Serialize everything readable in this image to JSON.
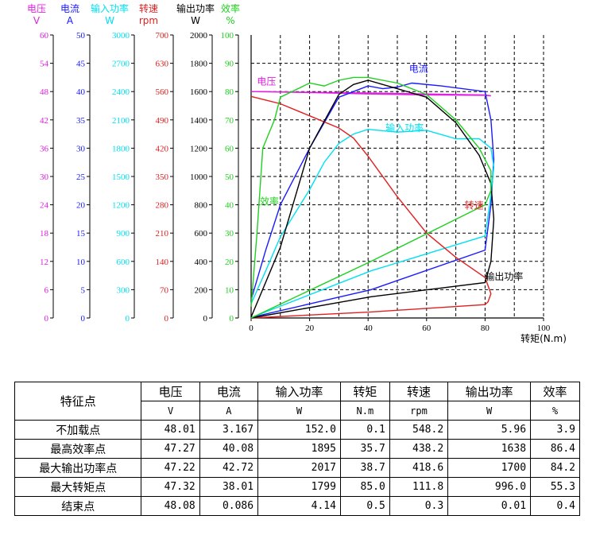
{
  "chart_data": {
    "type": "line",
    "xlabel": "转矩(N.m)",
    "xlim": [
      0,
      100
    ],
    "x_ticks": [
      "0",
      "20",
      "40",
      "60",
      "80",
      "100"
    ],
    "grid": true,
    "axes": [
      {
        "name": "电压",
        "unit": "V",
        "color": "#e020e0",
        "ticks": [
          "0",
          "6",
          "12",
          "18",
          "24",
          "30",
          "36",
          "42",
          "48",
          "54",
          "60"
        ]
      },
      {
        "name": "电流",
        "unit": "A",
        "color": "#1a1aff",
        "ticks": [
          "0",
          "5",
          "10",
          "15",
          "20",
          "25",
          "30",
          "35",
          "40",
          "45",
          "50"
        ]
      },
      {
        "name": "输入功率",
        "unit": "W",
        "color": "#00e0f0",
        "ticks": [
          "0",
          "300",
          "600",
          "900",
          "1200",
          "1500",
          "1800",
          "2100",
          "2400",
          "2700",
          "3000"
        ]
      },
      {
        "name": "转速",
        "unit": "rpm",
        "color": "#e02020",
        "ticks": [
          "0",
          "70",
          "140",
          "210",
          "280",
          "350",
          "420",
          "490",
          "560",
          "630",
          "700"
        ]
      },
      {
        "name": "输出功率",
        "unit": "W",
        "color": "#000000",
        "ticks": [
          "0",
          "200",
          "400",
          "600",
          "800",
          "1000",
          "1200",
          "1400",
          "1600",
          "1800",
          "2000"
        ]
      },
      {
        "name": "效率",
        "unit": "%",
        "color": "#20d020",
        "ticks": [
          "0",
          "10",
          "20",
          "30",
          "40",
          "50",
          "60",
          "70",
          "80",
          "90",
          "100"
        ]
      }
    ],
    "series": [
      {
        "name": "电压",
        "color": "#e020e0",
        "frac": 0.8,
        "points": [
          [
            0,
            48.0
          ],
          [
            20,
            47.8
          ],
          [
            40,
            47.5
          ],
          [
            60,
            47.3
          ],
          [
            80,
            47.2
          ],
          [
            82,
            47.1
          ],
          [
            80,
            47.3
          ],
          [
            40,
            47.7
          ],
          [
            0,
            48.0
          ]
        ]
      },
      {
        "name": "电流",
        "color": "#1a1aff",
        "frac": 0.5,
        "points": [
          [
            0,
            3.2
          ],
          [
            5,
            12
          ],
          [
            10,
            20
          ],
          [
            20,
            30
          ],
          [
            30,
            39
          ],
          [
            35,
            40
          ],
          [
            40,
            41
          ],
          [
            45,
            40.5
          ],
          [
            50,
            40.8
          ],
          [
            55,
            41.5
          ],
          [
            65,
            41
          ],
          [
            80,
            40
          ],
          [
            82,
            35
          ],
          [
            83,
            28
          ],
          [
            82,
            20
          ],
          [
            80,
            12
          ],
          [
            41,
            5
          ],
          [
            0,
            0.1
          ]
        ]
      },
      {
        "name": "输入功率",
        "color": "#00e0f0",
        "frac": 0.38,
        "points": [
          [
            0,
            152
          ],
          [
            5,
            500
          ],
          [
            10,
            860
          ],
          [
            20,
            1360
          ],
          [
            25,
            1650
          ],
          [
            30,
            1850
          ],
          [
            35,
            1950
          ],
          [
            40,
            2000
          ],
          [
            50,
            1970
          ],
          [
            60,
            1990
          ],
          [
            70,
            1900
          ],
          [
            78,
            1900
          ],
          [
            82,
            1800
          ],
          [
            83,
            1600
          ],
          [
            82,
            1300
          ],
          [
            80,
            870
          ],
          [
            41,
            500
          ],
          [
            0,
            4
          ]
        ]
      },
      {
        "name": "转速",
        "color": "#e02020",
        "frac": 0.38,
        "points": [
          [
            0,
            548
          ],
          [
            10,
            530
          ],
          [
            20,
            500
          ],
          [
            30,
            470
          ],
          [
            35,
            445
          ],
          [
            40,
            400
          ],
          [
            50,
            300
          ],
          [
            60,
            210
          ],
          [
            70,
            150
          ],
          [
            80,
            100
          ],
          [
            82,
            60
          ],
          [
            81,
            40
          ],
          [
            80,
            33
          ],
          [
            41,
            15
          ],
          [
            0,
            0
          ]
        ]
      },
      {
        "name": "输出功率",
        "color": "#000000",
        "frac": 0.38,
        "points": [
          [
            0,
            6
          ],
          [
            10,
            500
          ],
          [
            20,
            1200
          ],
          [
            30,
            1580
          ],
          [
            35,
            1650
          ],
          [
            40,
            1680
          ],
          [
            50,
            1620
          ],
          [
            60,
            1560
          ],
          [
            70,
            1380
          ],
          [
            78,
            1150
          ],
          [
            82,
            950
          ],
          [
            83,
            700
          ],
          [
            82,
            400
          ],
          [
            80,
            250
          ],
          [
            41,
            150
          ],
          [
            0,
            0
          ]
        ]
      },
      {
        "name": "效率",
        "color": "#20d020",
        "frac": 0.42,
        "points": [
          [
            0,
            4
          ],
          [
            2,
            30
          ],
          [
            4,
            60
          ],
          [
            8,
            70
          ],
          [
            10,
            78
          ],
          [
            20,
            83
          ],
          [
            25,
            82
          ],
          [
            30,
            84
          ],
          [
            35,
            85
          ],
          [
            40,
            85
          ],
          [
            50,
            83
          ],
          [
            60,
            79
          ],
          [
            70,
            70
          ],
          [
            78,
            60
          ],
          [
            82,
            52
          ],
          [
            82,
            45
          ],
          [
            80,
            40
          ],
          [
            41,
            20
          ],
          [
            0,
            0
          ]
        ]
      }
    ],
    "curve_labels": [
      {
        "text": "电压",
        "color": "#e020e0",
        "x": 2,
        "y_axis": 0,
        "y": 49.5
      },
      {
        "text": "电流",
        "color": "#1a1aff",
        "x": 54,
        "y_axis": 1,
        "y": 43.5
      },
      {
        "text": "输入功率",
        "color": "#00e0f0",
        "x": 46,
        "y_axis": 2,
        "y": 1980
      },
      {
        "text": "效率",
        "color": "#20d020",
        "x": 3,
        "y_axis": 5,
        "y": 40
      },
      {
        "text": "转速",
        "color": "#e02020",
        "x": 73,
        "y_axis": 3,
        "y": 270
      },
      {
        "text": "输出功率",
        "color": "#000000",
        "x": 80,
        "y_axis": 4,
        "y": 270
      }
    ]
  },
  "table": {
    "headers": [
      "特征点",
      "电压",
      "电流",
      "输入功率",
      "转矩",
      "转速",
      "输出功率",
      "效率"
    ],
    "units": [
      "V",
      "A",
      "W",
      "N.m",
      "rpm",
      "W",
      "%"
    ],
    "rows": [
      [
        "不加载点",
        "48.01",
        "3.167",
        "152.0",
        "0.1",
        "548.2",
        "5.96",
        "3.9"
      ],
      [
        "最高效率点",
        "47.27",
        "40.08",
        "1895",
        "35.7",
        "438.2",
        "1638",
        "86.4"
      ],
      [
        "最大输出功率点",
        "47.22",
        "42.72",
        "2017",
        "38.7",
        "418.6",
        "1700",
        "84.2"
      ],
      [
        "最大转矩点",
        "47.32",
        "38.01",
        "1799",
        "85.0",
        "111.8",
        "996.0",
        "55.3"
      ],
      [
        "结束点",
        "48.08",
        "0.086",
        "4.14",
        "0.5",
        "0.3",
        "0.01",
        "0.4"
      ]
    ]
  }
}
